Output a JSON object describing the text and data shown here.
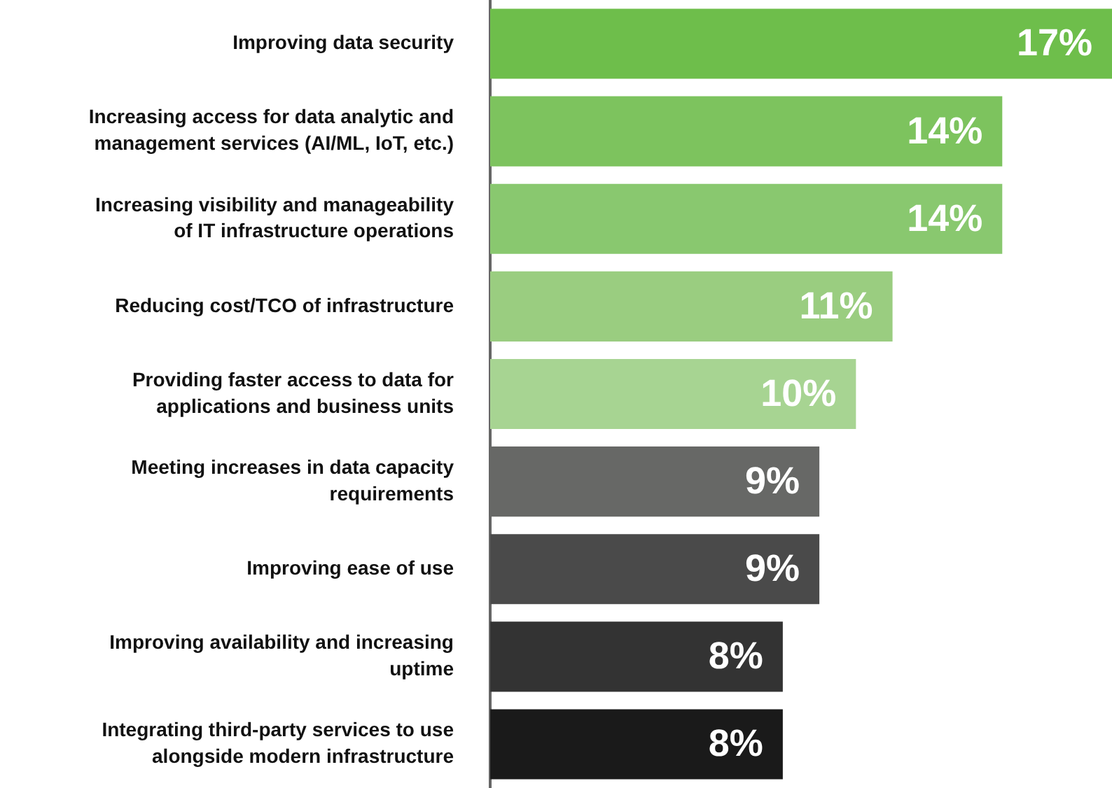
{
  "chart_data": {
    "type": "bar",
    "orientation": "horizontal",
    "categories": [
      "Improving data security",
      "Increasing access for data analytic and management services (AI/ML, IoT, etc.)",
      "Increasing visibility and manageability of IT infrastructure operations",
      "Reducing cost/TCO of infrastructure",
      "Providing faster access to data for applications and business units",
      "Meeting increases in data capacity requirements",
      "Improving ease of use",
      "Improving availability and increasing uptime",
      "Integrating third-party services to use alongside modern infrastructure"
    ],
    "values": [
      17,
      14,
      14,
      11,
      10,
      9,
      9,
      8,
      8
    ],
    "value_labels": [
      "17%",
      "14%",
      "14%",
      "11%",
      "10%",
      "9%",
      "9%",
      "8%",
      "8%"
    ],
    "colors": [
      "#6ebe4b",
      "#7dc35e",
      "#89c86f",
      "#9acd80",
      "#a7d492",
      "#676866",
      "#4a4a4a",
      "#333333",
      "#1a1a1a"
    ],
    "grid": false,
    "legend": false
  }
}
